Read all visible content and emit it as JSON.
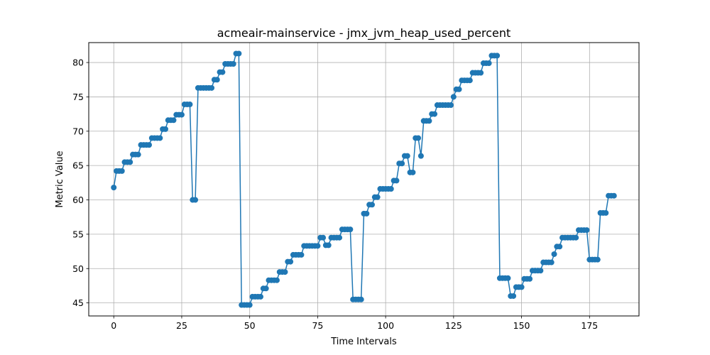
{
  "chart_data": {
    "type": "line",
    "title": "acmeair-mainservice - jmx_jvm_heap_used_percent",
    "xlabel": "Time Intervals",
    "ylabel": "Metric Value",
    "xlim": [
      -9.2,
      193.2
    ],
    "ylim": [
      43.1,
      82.9
    ],
    "xticks": [
      0,
      25,
      50,
      75,
      100,
      125,
      150,
      175
    ],
    "yticks": [
      45,
      50,
      55,
      60,
      65,
      70,
      75,
      80
    ],
    "grid": true,
    "legend": "none",
    "series": [
      {
        "color": "#1f77b4",
        "marker": "circle",
        "x_start": 0,
        "values": [
          61.8,
          64.2,
          64.2,
          64.2,
          65.5,
          65.5,
          65.5,
          66.6,
          66.6,
          66.6,
          68.0,
          68.0,
          68.0,
          68.0,
          69.0,
          69.0,
          69.0,
          69.0,
          70.3,
          70.3,
          71.6,
          71.6,
          71.6,
          72.4,
          72.4,
          72.4,
          73.9,
          73.9,
          73.9,
          60.0,
          60.0,
          76.3,
          76.3,
          76.3,
          76.3,
          76.3,
          76.3,
          77.5,
          77.5,
          78.6,
          78.6,
          79.8,
          79.8,
          79.8,
          79.8,
          81.3,
          81.3,
          44.7,
          44.7,
          44.7,
          44.7,
          45.9,
          45.9,
          45.9,
          45.9,
          47.1,
          47.1,
          48.3,
          48.3,
          48.3,
          48.3,
          49.5,
          49.5,
          49.5,
          51.0,
          51.0,
          52.0,
          52.0,
          52.0,
          52.0,
          53.3,
          53.3,
          53.3,
          53.3,
          53.3,
          53.3,
          54.5,
          54.5,
          53.4,
          53.4,
          54.5,
          54.5,
          54.5,
          54.5,
          55.7,
          55.7,
          55.7,
          55.7,
          45.5,
          45.5,
          45.5,
          45.5,
          58.0,
          58.0,
          59.3,
          59.3,
          60.4,
          60.4,
          61.6,
          61.6,
          61.6,
          61.6,
          61.6,
          62.8,
          62.8,
          65.3,
          65.3,
          66.4,
          66.4,
          64.0,
          64.0,
          69.0,
          69.0,
          66.4,
          71.5,
          71.5,
          71.5,
          72.5,
          72.5,
          73.8,
          73.8,
          73.8,
          73.8,
          73.8,
          73.8,
          75.0,
          76.1,
          76.1,
          77.4,
          77.4,
          77.4,
          77.4,
          78.5,
          78.5,
          78.5,
          78.5,
          79.9,
          79.9,
          79.9,
          81.0,
          81.0,
          81.0,
          48.6,
          48.6,
          48.6,
          48.6,
          46.0,
          46.0,
          47.3,
          47.3,
          47.3,
          48.5,
          48.5,
          48.5,
          49.7,
          49.7,
          49.7,
          49.7,
          50.9,
          50.9,
          50.9,
          50.9,
          52.1,
          53.2,
          53.2,
          54.5,
          54.5,
          54.5,
          54.5,
          54.5,
          54.5,
          55.6,
          55.6,
          55.6,
          55.6,
          51.3,
          51.3,
          51.3,
          51.3,
          58.1,
          58.1,
          58.1,
          60.6,
          60.6,
          60.6
        ]
      }
    ]
  }
}
